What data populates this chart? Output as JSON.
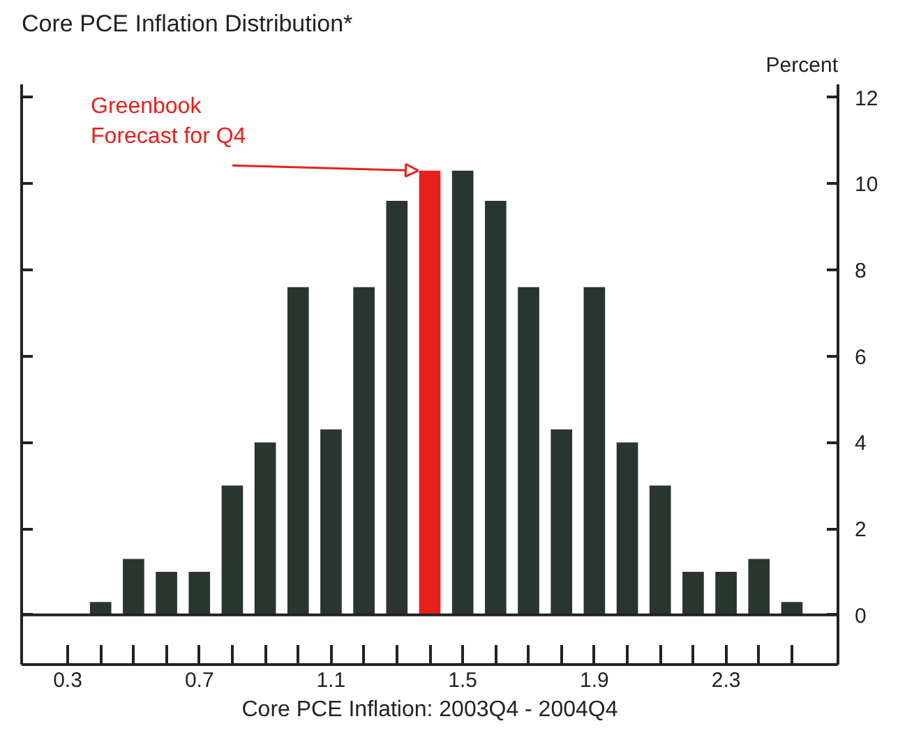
{
  "chart_data": {
    "type": "bar",
    "title": "Core PCE Inflation Distribution*",
    "xlabel": "Core PCE Inflation: 2003Q4 - 2004Q4",
    "ylabel": "Percent",
    "x": [
      0.4,
      0.5,
      0.6,
      0.7,
      0.8,
      0.9,
      1.0,
      1.1,
      1.2,
      1.3,
      1.4,
      1.5,
      1.6,
      1.7,
      1.8,
      1.9,
      2.0,
      2.1,
      2.2,
      2.3,
      2.4,
      2.5
    ],
    "values": [
      0.3,
      1.3,
      1.0,
      1.0,
      3.0,
      4.0,
      7.6,
      4.3,
      7.6,
      9.6,
      10.3,
      10.3,
      9.6,
      7.6,
      4.3,
      7.6,
      4.0,
      3.0,
      1.0,
      1.0,
      1.3,
      0.3
    ],
    "colors": [
      "#2b3530",
      "#2b3530",
      "#2b3530",
      "#2b3530",
      "#2b3530",
      "#2b3530",
      "#2b3530",
      "#2b3530",
      "#2b3530",
      "#2b3530",
      "#e8201c",
      "#2b3530",
      "#2b3530",
      "#2b3530",
      "#2b3530",
      "#2b3530",
      "#2b3530",
      "#2b3530",
      "#2b3530",
      "#2b3530",
      "#2b3530",
      "#2b3530"
    ],
    "xlim": [
      0.16,
      2.64
    ],
    "ylim": [
      -1.15,
      12.3
    ],
    "xticks": [
      0.3,
      {
        "value": 0.4,
        "label": null
      },
      {
        "value": 0.5,
        "label": null
      },
      {
        "value": 0.6,
        "label": null
      },
      0.7,
      {
        "value": 0.8,
        "label": null
      },
      {
        "value": 0.9,
        "label": null
      },
      {
        "value": 1.0,
        "label": null
      },
      1.1,
      {
        "value": 1.2,
        "label": null
      },
      {
        "value": 1.3,
        "label": null
      },
      {
        "value": 1.4,
        "label": null
      },
      1.5,
      {
        "value": 1.6,
        "label": null
      },
      {
        "value": 1.7,
        "label": null
      },
      {
        "value": 1.8,
        "label": null
      },
      1.9,
      {
        "value": 2.0,
        "label": null
      },
      {
        "value": 2.1,
        "label": null
      },
      {
        "value": 2.2,
        "label": null
      },
      2.3,
      {
        "value": 2.4,
        "label": null
      },
      {
        "value": 2.5,
        "label": null
      }
    ],
    "yticks": [
      0,
      2,
      4,
      6,
      8,
      10,
      12
    ],
    "ref_lines": [
      {
        "axis": "y",
        "value": 0,
        "color": "#222222"
      }
    ],
    "annotations": [
      {
        "text": "Greenbook\nForecast for Q4",
        "x": 1.4,
        "y": 10.3
      }
    ],
    "grid": false
  }
}
